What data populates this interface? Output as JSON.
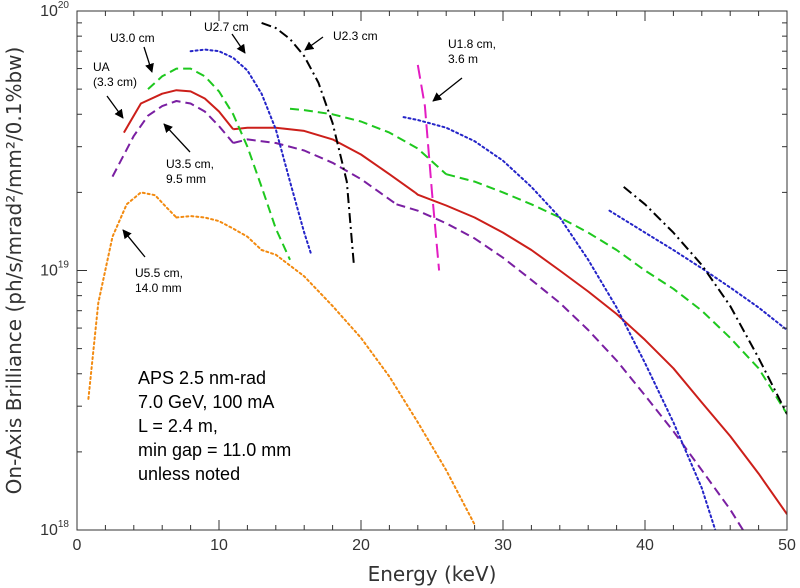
{
  "chart_data": {
    "type": "line",
    "xlabel": "Energy (keV)",
    "ylabel": "On-Axis Brilliance (ph/s/mrad²/mm²/0.1%bw)",
    "xlim": [
      0,
      50
    ],
    "ylim": [
      1e+18,
      1e+20
    ],
    "yscale": "log",
    "x_ticks": [
      "0",
      "10",
      "20",
      "30",
      "40",
      "50"
    ],
    "y_ticks": [
      {
        "base": "10",
        "exp": "18"
      },
      {
        "base": "10",
        "exp": "19"
      },
      {
        "base": "10",
        "exp": "20"
      }
    ],
    "info_lines": [
      "APS 2.5 nm-rad",
      "7.0 GeV, 100 mA",
      "L = 2.4 m,",
      "min gap = 11.0 mm",
      "unless noted"
    ],
    "annotations": [
      {
        "lines": [
          "U3.0 cm"
        ]
      },
      {
        "lines": [
          "U2.7 cm"
        ]
      },
      {
        "lines": [
          "U2.3 cm"
        ]
      },
      {
        "lines": [
          "UA",
          "(3.3 cm)"
        ]
      },
      {
        "lines": [
          "U1.8 cm,",
          "3.6 m"
        ]
      },
      {
        "lines": [
          "U3.5 cm,",
          "9.5 mm"
        ]
      },
      {
        "lines": [
          "U5.5 cm,",
          "14.0 mm"
        ]
      }
    ],
    "series": [
      {
        "color": "#cc1f1a",
        "style": "solid",
        "width": 2,
        "segments": [
          [
            [
              3.3,
              3.4e+19
            ],
            [
              4.5,
              4.4e+19
            ],
            [
              6,
              4.8e+19
            ],
            [
              7,
              4.95e+19
            ],
            [
              8,
              4.9e+19
            ],
            [
              9,
              4.6e+19
            ],
            [
              10,
              4.1e+19
            ],
            [
              11,
              3.5e+19
            ]
          ],
          [
            [
              11,
              3.5e+19
            ],
            [
              12,
              3.55e+19
            ],
            [
              14,
              3.55e+19
            ],
            [
              16,
              3.45e+19
            ],
            [
              18,
              3.2e+19
            ],
            [
              20,
              2.8e+19
            ],
            [
              22,
              2.35e+19
            ],
            [
              23.8,
              2e+19
            ]
          ],
          [
            [
              23.8,
              2e+19
            ],
            [
              24,
              1.96e+19
            ],
            [
              26,
              1.78e+19
            ],
            [
              28,
              1.6e+19
            ],
            [
              30,
              1.4e+19
            ],
            [
              32,
              1.2e+19
            ],
            [
              34,
              1e+19
            ],
            [
              36,
              8.3e+18
            ],
            [
              38,
              6.8e+18
            ],
            [
              40,
              5.4e+18
            ],
            [
              42,
              4.2e+18
            ],
            [
              44,
              3.1e+18
            ],
            [
              46,
              2.3e+18
            ],
            [
              48,
              1.65e+18
            ],
            [
              50,
              1.15e+18
            ]
          ]
        ]
      },
      {
        "color": "#1ec81e",
        "style": "dash",
        "width": 2,
        "segments": [
          [
            [
              5,
              5e+19
            ],
            [
              6,
              5.6e+19
            ],
            [
              7,
              6e+19
            ],
            [
              8,
              6e+19
            ],
            [
              9,
              5.6e+19
            ],
            [
              10,
              4.9e+19
            ],
            [
              11,
              4e+19
            ],
            [
              12,
              3e+19
            ],
            [
              13,
              2.1e+19
            ],
            [
              14,
              1.45e+19
            ],
            [
              15,
              1.1e+19
            ]
          ],
          [
            [
              15,
              4.2e+19
            ],
            [
              16,
              4.15e+19
            ],
            [
              18,
              4e+19
            ],
            [
              20,
              3.75e+19
            ],
            [
              22,
              3.4e+19
            ],
            [
              24,
              2.95e+19
            ],
            [
              26,
              2.35e+19
            ]
          ],
          [
            [
              26,
              2.35e+19
            ],
            [
              28,
              2.2e+19
            ],
            [
              30,
              2e+19
            ],
            [
              32,
              1.8e+19
            ],
            [
              34,
              1.6e+19
            ],
            [
              36,
              1.4e+19
            ],
            [
              38,
              1.2e+19
            ],
            [
              40,
              1e+19
            ],
            [
              42,
              8.5e+18
            ],
            [
              44,
              7e+18
            ],
            [
              46,
              5.5e+18
            ],
            [
              48,
              4.2e+18
            ],
            [
              50,
              2.8e+18
            ]
          ]
        ]
      },
      {
        "color": "#7a1fa2",
        "style": "dash",
        "width": 2,
        "segments": [
          [
            [
              2.5,
              2.3e+19
            ],
            [
              4,
              3.3e+19
            ],
            [
              5,
              3.95e+19
            ],
            [
              6,
              4.3e+19
            ],
            [
              7,
              4.5e+19
            ],
            [
              8,
              4.4e+19
            ],
            [
              9,
              4.1e+19
            ],
            [
              10,
              3.6e+19
            ],
            [
              11,
              3.1e+19
            ]
          ],
          [
            [
              11,
              3.1e+19
            ],
            [
              12,
              3.2e+19
            ],
            [
              14,
              3.1e+19
            ],
            [
              16,
              2.9e+19
            ],
            [
              18,
              2.6e+19
            ],
            [
              20,
              2.25e+19
            ],
            [
              22.5,
              1.8e+19
            ]
          ],
          [
            [
              22.5,
              1.8e+19
            ],
            [
              24,
              1.7e+19
            ],
            [
              26,
              1.52e+19
            ],
            [
              28,
              1.33e+19
            ],
            [
              30,
              1.12e+19
            ],
            [
              32,
              9.2e+18
            ],
            [
              34,
              7.5e+18
            ],
            [
              36,
              5.9e+18
            ],
            [
              38,
              4.5e+18
            ],
            [
              40,
              3.3e+18
            ],
            [
              42,
              2.4e+18
            ],
            [
              44,
              1.7e+18
            ],
            [
              46,
              1.2e+18
            ],
            [
              47,
              9.8e+17
            ]
          ]
        ]
      },
      {
        "color": "#2424c8",
        "style": "dot",
        "width": 2,
        "segments": [
          [
            [
              8,
              7e+19
            ],
            [
              9,
              7.1e+19
            ],
            [
              10,
              7e+19
            ],
            [
              11,
              6.6e+19
            ],
            [
              12,
              5.9e+19
            ],
            [
              13,
              4.8e+19
            ],
            [
              14,
              3.5e+19
            ],
            [
              15,
              2.2e+19
            ],
            [
              16,
              1.4e+19
            ],
            [
              16.5,
              1.15e+19
            ]
          ],
          [
            [
              23,
              3.9e+19
            ],
            [
              24,
              3.8e+19
            ],
            [
              26,
              3.55e+19
            ],
            [
              28,
              3.15e+19
            ],
            [
              30,
              2.65e+19
            ],
            [
              32,
              2.1e+19
            ],
            [
              34,
              1.6e+19
            ],
            [
              36,
              1.1e+19
            ],
            [
              38,
              7.2e+18
            ],
            [
              40,
              4.4e+18
            ],
            [
              42,
              2.6e+18
            ],
            [
              44,
              1.45e+18
            ],
            [
              45,
              9.8e+17
            ]
          ],
          [
            [
              37.5,
              1.7e+19
            ],
            [
              40,
              1.4e+19
            ],
            [
              42,
              1.2e+19
            ],
            [
              44,
              1.02e+19
            ],
            [
              46,
              8.6e+18
            ],
            [
              48,
              7.2e+18
            ],
            [
              50,
              5.9e+18
            ]
          ]
        ]
      },
      {
        "color": "#000000",
        "style": "dashdot",
        "width": 2,
        "segments": [
          [
            [
              13,
              9e+19
            ],
            [
              14,
              8.6e+19
            ],
            [
              15,
              7.8e+19
            ],
            [
              16,
              6.7e+19
            ],
            [
              17,
              5.3e+19
            ],
            [
              18,
              3.7e+19
            ],
            [
              19,
              2.2e+19
            ],
            [
              19.5,
              1.05e+19
            ]
          ],
          [
            [
              38.5,
              2.1e+19
            ],
            [
              40,
              1.8e+19
            ],
            [
              42,
              1.4e+19
            ],
            [
              44,
              1.05e+19
            ],
            [
              46,
              7.3e+18
            ],
            [
              48,
              4.6e+18
            ],
            [
              50,
              2.8e+18
            ]
          ]
        ]
      },
      {
        "color": "#e31cc2",
        "style": "longdash",
        "width": 2,
        "segments": [
          [
            [
              24,
              6.2e+19
            ],
            [
              24.5,
              4.3e+19
            ],
            [
              25,
              2e+19
            ],
            [
              25.5,
              1e+19
            ]
          ]
        ]
      },
      {
        "color": "#f28a10",
        "style": "dot",
        "width": 2,
        "segments": [
          [
            [
              0.8,
              3.2e+18
            ],
            [
              1.5,
              7.5e+18
            ],
            [
              2.5,
              1.35e+19
            ],
            [
              3.5,
              1.8e+19
            ],
            [
              4.5,
              2e+19
            ],
            [
              5.5,
              1.95e+19
            ],
            [
              6.3,
              1.75e+19
            ],
            [
              7,
              1.6e+19
            ]
          ],
          [
            [
              7,
              1.6e+19
            ],
            [
              8,
              1.62e+19
            ],
            [
              9,
              1.6e+19
            ],
            [
              10,
              1.55e+19
            ],
            [
              11,
              1.45e+19
            ],
            [
              12,
              1.35e+19
            ],
            [
              13,
              1.2e+19
            ]
          ],
          [
            [
              13,
              1.2e+19
            ],
            [
              14,
              1.15e+19
            ],
            [
              16,
              9.5e+18
            ],
            [
              18,
              7.3e+18
            ],
            [
              20,
              5.5e+18
            ],
            [
              22,
              3.9e+18
            ],
            [
              24,
              2.6e+18
            ],
            [
              26,
              1.7e+18
            ],
            [
              28,
              1.05e+18
            ]
          ]
        ]
      }
    ]
  }
}
